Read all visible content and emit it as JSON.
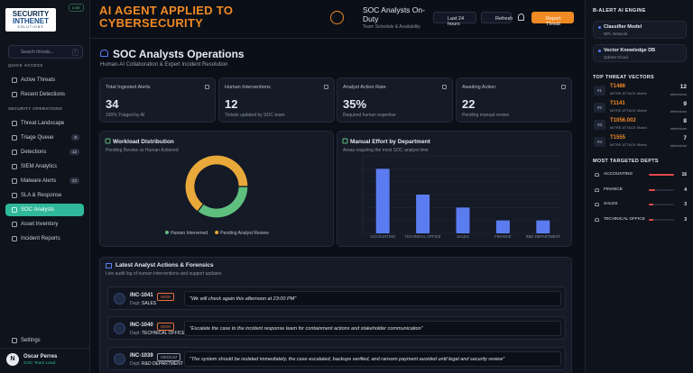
{
  "sidebar": {
    "logo": [
      "SECURITY",
      "INTHENET",
      "SOLUTIONS"
    ],
    "live_badge": "LIVE",
    "search": {
      "placeholder": "Search threats...",
      "shortcut": "/"
    },
    "sections": [
      {
        "title": "QUICK ACCESS",
        "items": [
          {
            "label": "Active Threats"
          },
          {
            "label": "Recent Detections"
          }
        ]
      },
      {
        "title": "SECURITY OPERATIONS",
        "items": [
          {
            "label": "Threat Landscape"
          },
          {
            "label": "Triage Queue",
            "badge": "9"
          },
          {
            "label": "Detections",
            "badge": "12"
          },
          {
            "label": "SIEM Analytics"
          },
          {
            "label": "Malware Alerts",
            "badge": "24"
          },
          {
            "label": "SLA & Response"
          },
          {
            "label": "SOC Analysts",
            "active": true
          },
          {
            "label": "Asset Inventory"
          },
          {
            "label": "Incident Reports"
          }
        ]
      }
    ],
    "settings": "Settings",
    "user": {
      "initial": "N",
      "name": "Oscar Perres",
      "role": "SOC Team Lead"
    }
  },
  "header": {
    "title": "AI AGENT APPLIED TO CYBERSECURITY",
    "context_title": "SOC Analysts On-Duty",
    "context_subtitle": "Team Schedule & Availability",
    "buttons": [
      "Last 24 hours",
      "Refresh",
      "Report Threat"
    ]
  },
  "page": {
    "title": "SOC Analysts Operations",
    "subtitle": "Human-AI Collaboration & Expert Incident Resolution"
  },
  "kpis": [
    {
      "label": "Total Ingested Alerts",
      "value": "34",
      "note": "100% Triaged by AI"
    },
    {
      "label": "Human Interventions",
      "value": "12",
      "note": "Tickets updated by SOC team"
    },
    {
      "label": "Analyst Action Rate",
      "value": "35%",
      "note": "Required human expertise"
    },
    {
      "label": "Awaiting Action",
      "value": "22",
      "note": "Pending manual review"
    }
  ],
  "chart_data": [
    {
      "type": "pie",
      "title": "Workload Distribution",
      "subtitle": "Pending Review vs Human Actioned",
      "categories": [
        "Human Intervened",
        "Pending Analyst Review"
      ],
      "values": [
        12,
        22
      ],
      "colors": [
        "#5fbf7f",
        "#e8a93a"
      ]
    },
    {
      "type": "bar",
      "title": "Manual Effort by Department",
      "subtitle": "Areas requiring the most SOC analyst time",
      "categories": [
        "ACCOUNTING",
        "TECHNICAL OFFICE",
        "SALES",
        "FINANCE",
        "R&D DEPARTMENT"
      ],
      "values": [
        5,
        3,
        2,
        1,
        1
      ],
      "color": "#5b7cf0",
      "ylim": [
        0,
        6
      ],
      "grid": true
    }
  ],
  "actions": {
    "title": "Latest Analyst Actions & Forensics",
    "subtitle": "Live audit log of human interventions and support updates",
    "rows": [
      {
        "id": "INC-1041",
        "priority": "HIGH",
        "priority_color": "#e8703a",
        "dept_label": "Dept:",
        "dept": "SALES",
        "note": "\"We will check again this afternoon at 23:00 PM\""
      },
      {
        "id": "INC-1040",
        "priority": "HIGH",
        "priority_color": "#e8703a",
        "dept_label": "Dept:",
        "dept": "TECHNICAL OFFICE",
        "note": "\"Escalate the case to the incident response team for containment actions and stakeholder communication\""
      },
      {
        "id": "INC-1039",
        "priority": "MEDIUM",
        "priority_color": "#8a93a3",
        "dept_label": "Dept:",
        "dept": "R&D DEPARTMENT",
        "note": "\"The system should be isolated immediately, the case escalated, backups verified, and ransom payment avoided until legal and security review\""
      }
    ]
  },
  "ai_engine": {
    "title": "B-ALERT AI ENGINE",
    "models": [
      {
        "name": "Classifier Model",
        "source": "NPL Network"
      },
      {
        "name": "Vector Knowledge DB",
        "source": "Qdrant Cloud"
      }
    ]
  },
  "threat_vectors": {
    "title": "TOP THREAT VECTORS",
    "items": [
      {
        "rank": "#1",
        "id": "T1486",
        "source": "MITRE ATT&CK Matrix",
        "count": 12,
        "unit": "detections"
      },
      {
        "rank": "#2",
        "id": "T1141",
        "source": "MITRE ATT&CK Matrix",
        "count": 9,
        "unit": "detections"
      },
      {
        "rank": "#3",
        "id": "T1056.002",
        "source": "MITRE ATT&CK Matrix",
        "count": 8,
        "unit": "detections"
      },
      {
        "rank": "#4",
        "id": "T1555",
        "source": "MITRE ATT&CK Matrix",
        "count": 7,
        "unit": "detections"
      }
    ]
  },
  "targeted_depts": {
    "title": "MOST TARGETED DEPTS",
    "items": [
      {
        "name": "ACCOUNTING",
        "count": 16
      },
      {
        "name": "FINANCE",
        "count": 4
      },
      {
        "name": "SALES",
        "count": 3
      },
      {
        "name": "TECHNICAL OFFICE",
        "count": 3
      }
    ]
  }
}
